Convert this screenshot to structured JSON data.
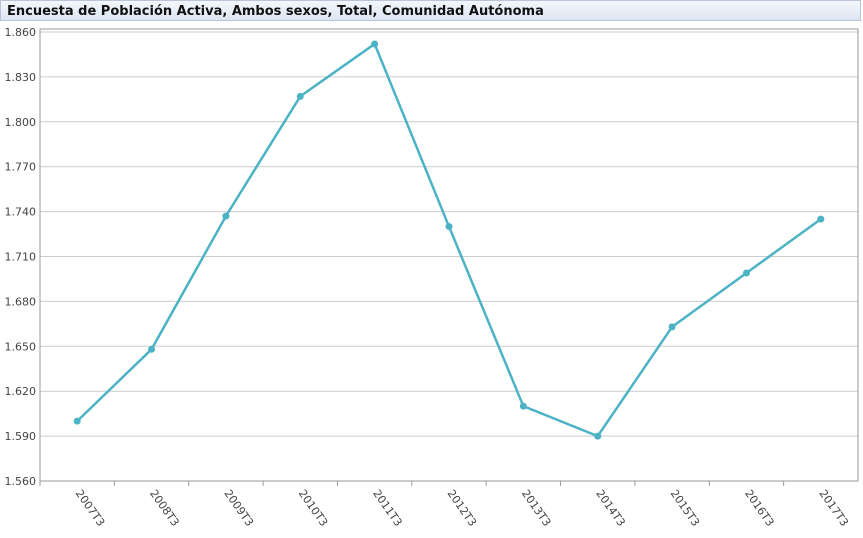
{
  "chart_data": {
    "type": "line",
    "title": "Encuesta de Población Activa, Ambos sexos, Total, Comunidad Autónoma",
    "categories": [
      "2007T3",
      "2008T3",
      "2009T3",
      "2010T3",
      "2011T3",
      "2012T3",
      "2013T3",
      "2014T3",
      "2015T3",
      "2016T3",
      "2017T3"
    ],
    "series": [
      {
        "name": "Total",
        "color": "#4bb3c4",
        "values": [
          1600,
          1648,
          1737,
          1817,
          1852,
          1730,
          1610,
          1590,
          1663,
          1699,
          1735
        ]
      }
    ],
    "ylim": [
      1560,
      1860
    ],
    "yticks": [
      {
        "value": 1560,
        "label": "1.560"
      },
      {
        "value": 1590,
        "label": "1.590"
      },
      {
        "value": 1620,
        "label": "1.620"
      },
      {
        "value": 1650,
        "label": "1.650"
      },
      {
        "value": 1680,
        "label": "1.680"
      },
      {
        "value": 1710,
        "label": "1.710"
      },
      {
        "value": 1740,
        "label": "1.740"
      },
      {
        "value": 1770,
        "label": "1.770"
      },
      {
        "value": 1800,
        "label": "1.800"
      },
      {
        "value": 1830,
        "label": "1.830"
      },
      {
        "value": 1860,
        "label": "1.860"
      }
    ],
    "grid": true
  }
}
